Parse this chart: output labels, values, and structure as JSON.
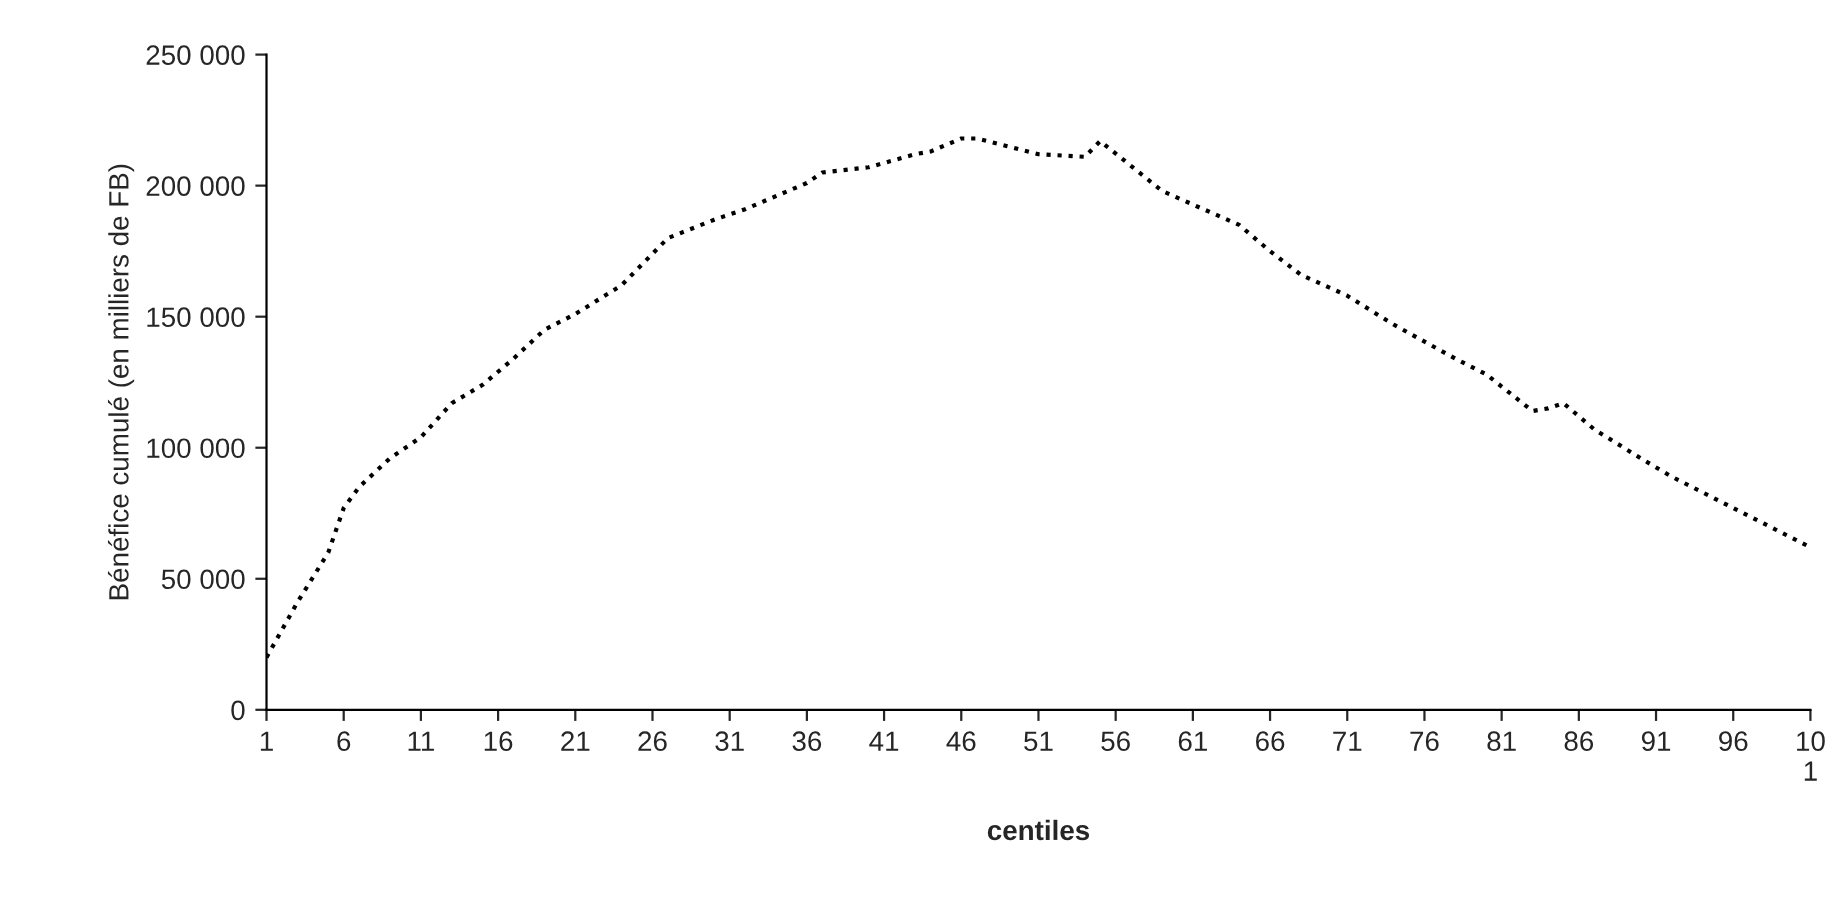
{
  "chart_data": {
    "type": "line",
    "xlabel": "centiles",
    "ylabel": "Bénéfice cumulé (en milliers de FB)",
    "x": [
      1,
      3,
      5,
      6,
      7,
      9,
      11,
      13,
      15,
      17,
      19,
      21,
      24,
      25,
      27,
      30,
      32,
      36,
      37,
      40,
      43,
      44,
      46,
      47,
      49,
      51,
      54,
      55,
      59,
      64,
      66,
      68,
      71,
      74,
      78,
      80,
      83,
      84,
      85,
      87,
      90,
      92,
      95,
      98,
      101
    ],
    "series": [
      {
        "color": "#000000",
        "values": [
          20000,
          41000,
          60000,
          77000,
          85000,
          96000,
          104000,
          117000,
          124000,
          134000,
          145000,
          151000,
          162000,
          168000,
          180000,
          187000,
          191000,
          201000,
          205000,
          207000,
          212000,
          213000,
          218000,
          218000,
          215000,
          212000,
          211000,
          217000,
          198000,
          185000,
          175000,
          166000,
          158000,
          147000,
          134000,
          128000,
          114000,
          115000,
          117000,
          107000,
          96000,
          89000,
          80000,
          71000,
          62000
        ]
      }
    ],
    "xlim": [
      1,
      101
    ],
    "xticks": [
      1,
      6,
      11,
      16,
      21,
      26,
      31,
      36,
      41,
      46,
      51,
      56,
      61,
      66,
      71,
      76,
      81,
      86,
      91,
      96,
      {
        "value": 101,
        "label": "10\n1"
      }
    ],
    "ylim": [
      0,
      250000
    ],
    "yticks": [
      0,
      {
        "value": 50000,
        "label": "50 000"
      },
      {
        "value": 100000,
        "label": "100 000"
      },
      {
        "value": 150000,
        "label": "150 000"
      },
      {
        "value": 200000,
        "label": "200 000"
      },
      {
        "value": 250000,
        "label": "250 000"
      }
    ],
    "grid": false,
    "legend": false,
    "marker": "none",
    "line_style": "dotted"
  }
}
